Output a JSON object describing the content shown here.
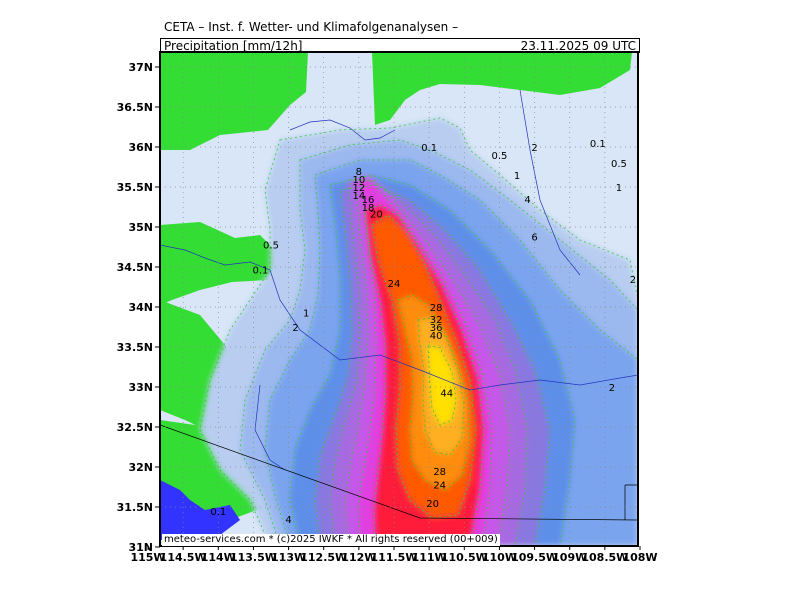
{
  "header": {
    "title": "CETA – Inst. f. Wetter- und Klimafolgenanalysen –",
    "field_label": "Precipitation [mm/12h]",
    "valid_time": "23.11.2025 09 UTC"
  },
  "footer": "meteo-services.com * (c)2025 IWKF * All rights reserved (00+009)",
  "colors": {
    "land": "#33dd33",
    "water": "#3333ff",
    "c0_1": "#d8e6f7",
    "c0_5": "#b8cdf0",
    "c1": "#9bb8ef",
    "c2": "#7aa4ee",
    "c4": "#5d8fe8",
    "c6": "#8878e0",
    "c8": "#a66ae0",
    "c12": "#c458e8",
    "c16": "#e040e0",
    "c20": "#ff1a3a",
    "c24": "#ff5a00",
    "c28": "#ff8c10",
    "c36": "#ffb020",
    "c44": "#ffe000"
  },
  "chart_data": {
    "type": "heatmap",
    "title": "Precipitation [mm/12h]",
    "xlim": [
      -115,
      -108
    ],
    "ylim": [
      31,
      37.2
    ],
    "x_ticks": [
      "115W",
      "114.5W",
      "114W",
      "113.5W",
      "113W",
      "112.5W",
      "112W",
      "111.5W",
      "111W",
      "110.5W",
      "110W",
      "109.5W",
      "109W",
      "108.5W",
      "108W"
    ],
    "y_ticks": [
      "31N",
      "31.5N",
      "32N",
      "32.5N",
      "33N",
      "33.5N",
      "34N",
      "34.5N",
      "35N",
      "35.5N",
      "36N",
      "36.5N",
      "37N"
    ],
    "grid": true,
    "contour_levels": [
      0.1,
      0.5,
      1,
      2,
      4,
      6,
      8,
      10,
      12,
      14,
      16,
      18,
      20,
      24,
      28,
      32,
      36,
      40,
      44
    ],
    "max_center": {
      "lon": -111.0,
      "lat": 33.0,
      "value": 44
    },
    "contour_labels": [
      {
        "text": "0.1",
        "lon": -111.0,
        "lat": 36.0
      },
      {
        "text": "0.5",
        "lon": -110.0,
        "lat": 35.9
      },
      {
        "text": "2",
        "lon": -109.5,
        "lat": 36.0
      },
      {
        "text": "0.1",
        "lon": -108.6,
        "lat": 36.05
      },
      {
        "text": "0.5",
        "lon": -108.3,
        "lat": 35.8
      },
      {
        "text": "1",
        "lon": -109.75,
        "lat": 35.65
      },
      {
        "text": "1",
        "lon": -108.3,
        "lat": 35.5
      },
      {
        "text": "8",
        "lon": -112.0,
        "lat": 35.7
      },
      {
        "text": "10",
        "lon": -112.0,
        "lat": 35.6
      },
      {
        "text": "12",
        "lon": -112.0,
        "lat": 35.5
      },
      {
        "text": "14",
        "lon": -112.0,
        "lat": 35.4
      },
      {
        "text": "16",
        "lon": -111.87,
        "lat": 35.35
      },
      {
        "text": "18",
        "lon": -111.87,
        "lat": 35.25
      },
      {
        "text": "20",
        "lon": -111.75,
        "lat": 35.17
      },
      {
        "text": "4",
        "lon": -109.6,
        "lat": 35.35
      },
      {
        "text": "6",
        "lon": -109.5,
        "lat": 34.88
      },
      {
        "text": "0.5",
        "lon": -113.25,
        "lat": 34.78
      },
      {
        "text": "0.1",
        "lon": -113.4,
        "lat": 34.47
      },
      {
        "text": "24",
        "lon": -111.5,
        "lat": 34.3
      },
      {
        "text": "2",
        "lon": -108.1,
        "lat": 34.35
      },
      {
        "text": "1",
        "lon": -112.75,
        "lat": 33.93
      },
      {
        "text": "28",
        "lon": -110.9,
        "lat": 34.0
      },
      {
        "text": "32",
        "lon": -110.9,
        "lat": 33.85
      },
      {
        "text": "36",
        "lon": -110.9,
        "lat": 33.75
      },
      {
        "text": "2",
        "lon": -112.9,
        "lat": 33.75
      },
      {
        "text": "40",
        "lon": -110.9,
        "lat": 33.65
      },
      {
        "text": "2",
        "lon": -108.4,
        "lat": 33.0
      },
      {
        "text": "44",
        "lon": -110.75,
        "lat": 32.93
      },
      {
        "text": "28",
        "lon": -110.85,
        "lat": 31.95
      },
      {
        "text": "24",
        "lon": -110.85,
        "lat": 31.78
      },
      {
        "text": "20",
        "lon": -110.95,
        "lat": 31.55
      },
      {
        "text": "0.1",
        "lon": -114.0,
        "lat": 31.45
      },
      {
        "text": "4",
        "lon": -113.0,
        "lat": 31.35
      }
    ]
  }
}
